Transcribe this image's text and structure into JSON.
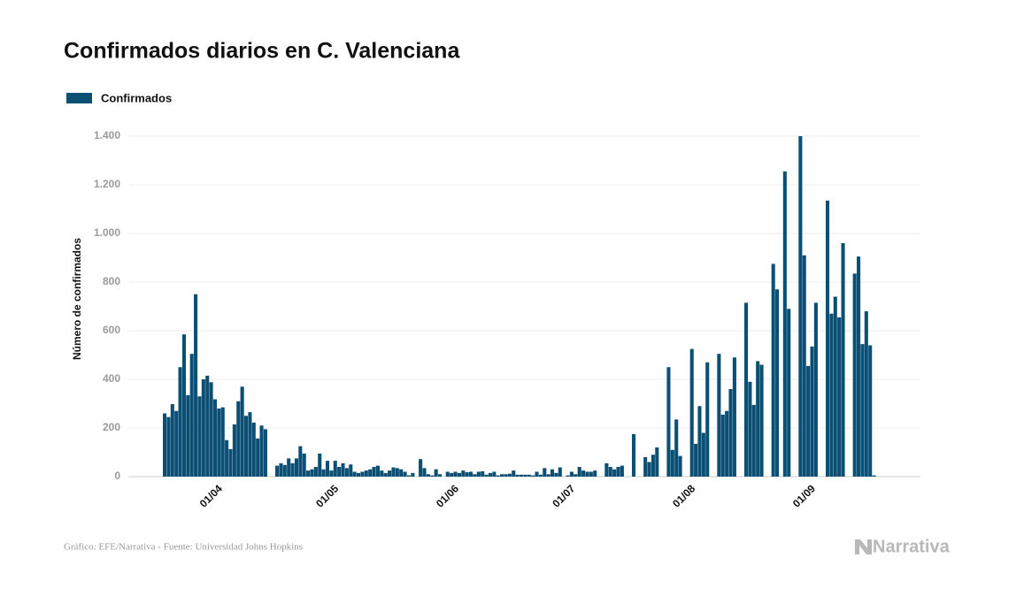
{
  "chart_data": {
    "type": "bar",
    "title": "Confirmados diarios en C. Valenciana",
    "ylabel": "Número de confirmados",
    "source": "Gráfico: EFE/Narrativa - Fuente: Universidad Johns Hopkins",
    "logo": "Narrativa",
    "legend": "top-left",
    "grid": true,
    "ylim": [
      0,
      1400
    ],
    "yticks": [
      0,
      200,
      400,
      600,
      800,
      {
        "value": 1000,
        "label": "1.000"
      },
      {
        "value": 1200,
        "label": "1.200"
      },
      {
        "value": 1400,
        "label": "1.400"
      }
    ],
    "categories": [
      null,
      null,
      null,
      null,
      null,
      null,
      null,
      null,
      null,
      null,
      null,
      null,
      null,
      null,
      "01/04",
      null,
      null,
      null,
      null,
      null,
      null,
      null,
      null,
      null,
      null,
      null,
      null,
      null,
      null,
      null,
      null,
      null,
      null,
      null,
      null,
      null,
      null,
      null,
      null,
      null,
      null,
      null,
      null,
      null,
      "01/05",
      null,
      null,
      null,
      null,
      null,
      null,
      null,
      null,
      null,
      null,
      null,
      null,
      null,
      null,
      null,
      null,
      null,
      null,
      null,
      null,
      null,
      null,
      null,
      null,
      null,
      null,
      null,
      null,
      null,
      null,
      "01/06",
      null,
      null,
      null,
      null,
      null,
      null,
      null,
      null,
      null,
      null,
      null,
      null,
      null,
      null,
      null,
      null,
      null,
      null,
      null,
      null,
      null,
      null,
      null,
      null,
      null,
      null,
      null,
      null,
      null,
      "01/07",
      null,
      null,
      null,
      null,
      null,
      null,
      null,
      null,
      null,
      null,
      null,
      null,
      null,
      null,
      null,
      null,
      null,
      null,
      null,
      null,
      null,
      null,
      null,
      null,
      null,
      null,
      null,
      null,
      null,
      null,
      "01/08",
      null,
      null,
      null,
      null,
      null,
      null,
      null,
      null,
      null,
      null,
      null,
      null,
      null,
      null,
      null,
      null,
      null,
      null,
      null,
      null,
      null,
      null,
      null,
      null,
      null,
      null,
      null,
      null,
      null,
      null,
      "01/09",
      null,
      null,
      null,
      null,
      null,
      null,
      null,
      null,
      null,
      null,
      null,
      null,
      null,
      null,
      null,
      null
    ],
    "series": [
      {
        "name": "Confirmados",
        "color": "#0b4f74",
        "values": [
          260,
          245,
          298,
          270,
          450,
          585,
          335,
          505,
          750,
          330,
          400,
          415,
          388,
          318,
          280,
          285,
          150,
          113,
          215,
          310,
          370,
          250,
          265,
          222,
          157,
          210,
          195,
          0,
          0,
          45,
          55,
          48,
          75,
          55,
          75,
          125,
          95,
          25,
          30,
          40,
          95,
          30,
          65,
          25,
          65,
          40,
          55,
          35,
          50,
          20,
          15,
          20,
          25,
          30,
          40,
          45,
          25,
          15,
          25,
          38,
          35,
          30,
          20,
          5,
          15,
          0,
          72,
          35,
          10,
          5,
          30,
          10,
          0,
          20,
          15,
          20,
          15,
          25,
          18,
          20,
          10,
          20,
          22,
          8,
          15,
          20,
          5,
          10,
          10,
          12,
          25,
          8,
          8,
          8,
          8,
          5,
          20,
          8,
          35,
          10,
          30,
          15,
          38,
          0,
          5,
          20,
          10,
          40,
          25,
          20,
          20,
          25,
          0,
          0,
          55,
          40,
          30,
          40,
          45,
          0,
          0,
          175,
          0,
          0,
          80,
          60,
          90,
          120,
          0,
          0,
          450,
          110,
          235,
          85,
          0,
          0,
          525,
          135,
          290,
          180,
          470,
          0,
          0,
          505,
          255,
          270,
          360,
          490,
          0,
          0,
          715,
          390,
          295,
          475,
          460,
          0,
          0,
          875,
          770,
          0,
          1255,
          690,
          0,
          0,
          1400,
          910,
          455,
          535,
          715,
          0,
          0,
          1135,
          670,
          740,
          655,
          960,
          0,
          0,
          835,
          905,
          545,
          680,
          540,
          5
        ]
      }
    ]
  }
}
